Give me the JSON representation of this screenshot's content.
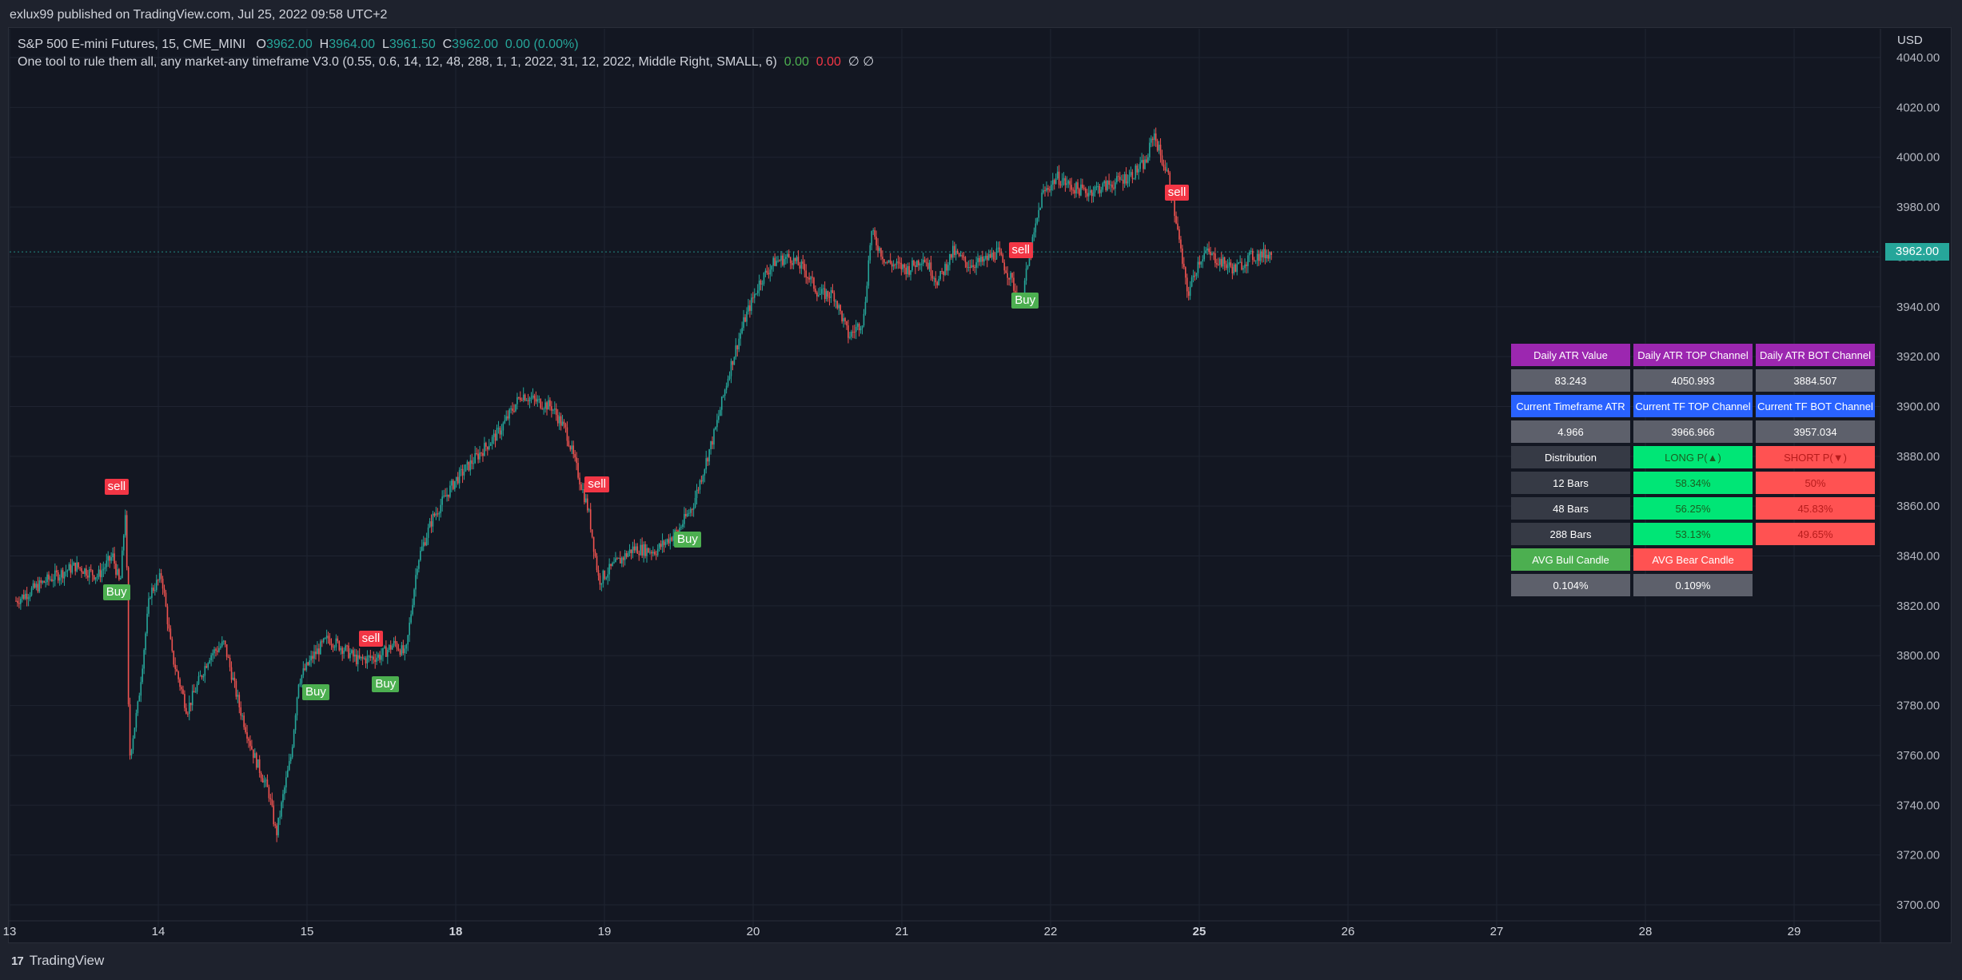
{
  "header": {
    "publisher": "exlux99 published on TradingView.com, Jul 25, 2022 09:58 UTC+2"
  },
  "legend": {
    "symbol": "S&P 500 E-mini Futures, 15, CME_MINI",
    "open_label": "O",
    "open": "3962.00",
    "high_label": "H",
    "high": "3964.00",
    "low_label": "L",
    "low": "3961.50",
    "close_label": "C",
    "close": "3962.00",
    "change": "0.00 (0.00%)",
    "indicator": "One tool to rule them all, any market-any timeframe V3.0 (0.55, 0.6, 14, 12, 48, 288, 1, 1, 2022, 31, 12, 2022, Middle Right, SMALL, 6)",
    "ind_val1": "0.00",
    "ind_val2": "0.00",
    "ind_val3": "∅ ∅"
  },
  "axis": {
    "currency": "USD",
    "last_price": "3962.00"
  },
  "chart_data": {
    "type": "candlestick",
    "title": "S&P 500 E-mini Futures, 15, CME_MINI",
    "ylim": [
      3695,
      4045
    ],
    "y_ticks": [
      3700,
      3720,
      3740,
      3760,
      3780,
      3800,
      3820,
      3840,
      3860,
      3880,
      3900,
      3920,
      3940,
      3960,
      3980,
      4000,
      4020,
      4040
    ],
    "x_ticks": [
      "13",
      "14",
      "15",
      "18",
      "19",
      "20",
      "21",
      "22",
      "25",
      "26",
      "27",
      "28",
      "29"
    ],
    "bold_x_ticks": [
      "18",
      "25"
    ],
    "last_price": 3962.0,
    "grid": true,
    "up_color": "#26a69a",
    "down_color": "#ef5350",
    "price_path": [
      [
        0.0,
        3822
      ],
      [
        0.2,
        3830
      ],
      [
        0.4,
        3836
      ],
      [
        0.55,
        3832
      ],
      [
        0.65,
        3840
      ],
      [
        0.7,
        3828
      ],
      [
        0.74,
        3862
      ],
      [
        0.76,
        3758
      ],
      [
        0.82,
        3780
      ],
      [
        0.9,
        3825
      ],
      [
        0.98,
        3832
      ],
      [
        1.05,
        3800
      ],
      [
        1.15,
        3778
      ],
      [
        1.3,
        3800
      ],
      [
        1.4,
        3805
      ],
      [
        1.5,
        3780
      ],
      [
        1.6,
        3760
      ],
      [
        1.7,
        3745
      ],
      [
        1.75,
        3728
      ],
      [
        1.8,
        3745
      ],
      [
        1.85,
        3760
      ],
      [
        1.9,
        3790
      ],
      [
        2.0,
        3800
      ],
      [
        2.1,
        3807
      ],
      [
        2.2,
        3803
      ],
      [
        2.3,
        3798
      ],
      [
        2.45,
        3800
      ],
      [
        2.55,
        3805
      ],
      [
        2.62,
        3800
      ],
      [
        2.7,
        3838
      ],
      [
        2.8,
        3855
      ],
      [
        2.95,
        3870
      ],
      [
        3.1,
        3880
      ],
      [
        3.25,
        3890
      ],
      [
        3.4,
        3905
      ],
      [
        3.5,
        3902
      ],
      [
        3.6,
        3900
      ],
      [
        3.7,
        3890
      ],
      [
        3.85,
        3858
      ],
      [
        3.92,
        3830
      ],
      [
        4.0,
        3835
      ],
      [
        4.15,
        3843
      ],
      [
        4.3,
        3842
      ],
      [
        4.45,
        3850
      ],
      [
        4.55,
        3860
      ],
      [
        4.7,
        3890
      ],
      [
        4.8,
        3915
      ],
      [
        4.9,
        3935
      ],
      [
        5.0,
        3950
      ],
      [
        5.1,
        3958
      ],
      [
        5.2,
        3960
      ],
      [
        5.3,
        3955
      ],
      [
        5.4,
        3945
      ],
      [
        5.5,
        3945
      ],
      [
        5.6,
        3928
      ],
      [
        5.7,
        3935
      ],
      [
        5.75,
        3970
      ],
      [
        5.85,
        3958
      ],
      [
        6.0,
        3955
      ],
      [
        6.1,
        3960
      ],
      [
        6.2,
        3950
      ],
      [
        6.3,
        3962
      ],
      [
        6.4,
        3957
      ],
      [
        6.5,
        3958
      ],
      [
        6.6,
        3962
      ],
      [
        6.7,
        3950
      ],
      [
        6.75,
        3940
      ],
      [
        6.8,
        3955
      ],
      [
        6.85,
        3970
      ],
      [
        6.9,
        3985
      ],
      [
        7.0,
        3992
      ],
      [
        7.1,
        3988
      ],
      [
        7.2,
        3986
      ],
      [
        7.3,
        3988
      ],
      [
        7.4,
        3990
      ],
      [
        7.5,
        3993
      ],
      [
        7.6,
        3998
      ],
      [
        7.65,
        4010
      ],
      [
        7.7,
        4000
      ],
      [
        7.75,
        3992
      ],
      [
        7.8,
        3975
      ],
      [
        7.85,
        3955
      ],
      [
        7.88,
        3945
      ],
      [
        7.95,
        3958
      ],
      [
        8.0,
        3962
      ],
      [
        8.1,
        3958
      ],
      [
        8.2,
        3955
      ],
      [
        8.3,
        3960
      ],
      [
        8.4,
        3961
      ],
      [
        8.45,
        3962
      ]
    ],
    "signals": [
      {
        "type": "sell",
        "label": "sell",
        "x": 0.67,
        "price": 3862
      },
      {
        "type": "buy",
        "label": "Buy",
        "x": 0.66,
        "price": 3828
      },
      {
        "type": "buy",
        "label": "Buy",
        "x": 2.0,
        "price": 3788
      },
      {
        "type": "sell",
        "label": "sell",
        "x": 2.38,
        "price": 3801
      },
      {
        "type": "buy",
        "label": "Buy",
        "x": 2.47,
        "price": 3791
      },
      {
        "type": "sell",
        "label": "sell",
        "x": 3.9,
        "price": 3863
      },
      {
        "type": "buy",
        "label": "Buy",
        "x": 4.5,
        "price": 3849
      },
      {
        "type": "sell",
        "label": "sell",
        "x": 6.75,
        "price": 3957
      },
      {
        "type": "buy",
        "label": "Buy",
        "x": 6.77,
        "price": 3945
      },
      {
        "type": "sell",
        "label": "sell",
        "x": 7.8,
        "price": 3980
      }
    ]
  },
  "table": {
    "rows": [
      [
        {
          "text": "Daily ATR Value",
          "style": "c-purple"
        },
        {
          "text": "Daily ATR TOP Channel",
          "style": "c-purple"
        },
        {
          "text": "Daily ATR BOT Channel",
          "style": "c-purple"
        }
      ],
      [
        {
          "text": "83.243",
          "style": "c-gray"
        },
        {
          "text": "4050.993",
          "style": "c-gray"
        },
        {
          "text": "3884.507",
          "style": "c-gray"
        }
      ],
      [
        {
          "text": "Current Timeframe ATR",
          "style": "c-blue"
        },
        {
          "text": "Current TF TOP Channel",
          "style": "c-blue"
        },
        {
          "text": "Current TF BOT Channel",
          "style": "c-blue"
        }
      ],
      [
        {
          "text": "4.966",
          "style": "c-gray"
        },
        {
          "text": "3966.966",
          "style": "c-gray"
        },
        {
          "text": "3957.034",
          "style": "c-gray"
        }
      ],
      [
        {
          "text": "Distribution",
          "style": "c-dark"
        },
        {
          "text": "LONG P(▲)",
          "style": "c-green"
        },
        {
          "text": "SHORT P(▼)",
          "style": "c-red"
        }
      ],
      [
        {
          "text": "12 Bars",
          "style": "c-dark"
        },
        {
          "text": "58.34%",
          "style": "c-green"
        },
        {
          "text": "50%",
          "style": "c-red"
        }
      ],
      [
        {
          "text": "48 Bars",
          "style": "c-dark"
        },
        {
          "text": "56.25%",
          "style": "c-green"
        },
        {
          "text": "45.83%",
          "style": "c-red"
        }
      ],
      [
        {
          "text": "288 Bars",
          "style": "c-dark"
        },
        {
          "text": "53.13%",
          "style": "c-green"
        },
        {
          "text": "49.65%",
          "style": "c-red"
        }
      ],
      [
        {
          "text": "AVG Bull Candle",
          "style": "c-lgreen"
        },
        {
          "text": "AVG Bear Candle",
          "style": "c-lred"
        },
        {
          "text": "",
          "style": "c-empty"
        }
      ],
      [
        {
          "text": "0.104%",
          "style": "c-gray"
        },
        {
          "text": "0.109%",
          "style": "c-gray"
        },
        {
          "text": "",
          "style": "c-empty"
        }
      ]
    ]
  },
  "footer": {
    "brand_logo": "17",
    "brand": "TradingView"
  }
}
